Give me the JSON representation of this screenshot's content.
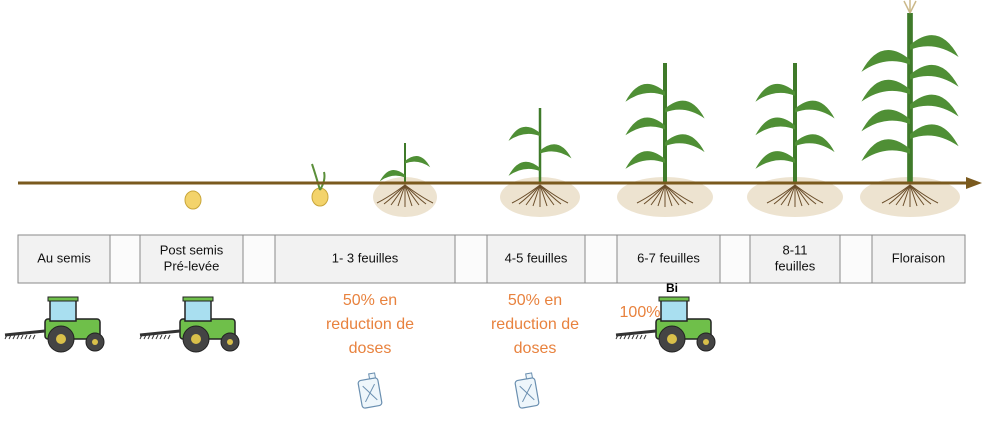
{
  "stages": [
    {
      "lines": [
        "Au semis"
      ]
    },
    {
      "lines": [
        "Post semis",
        "Pré-levée"
      ]
    },
    {
      "lines": [
        "1- 3 feuilles"
      ]
    },
    {
      "lines": [
        "4-5 feuilles"
      ]
    },
    {
      "lines": [
        "6-7 feuilles"
      ]
    },
    {
      "lines": [
        "8-11",
        "feuilles"
      ]
    },
    {
      "lines": [
        "Floraison"
      ]
    }
  ],
  "notes": [
    {
      "lines": [
        "50% en",
        "reduction de",
        "doses"
      ]
    },
    {
      "lines": [
        "50% en",
        "reduction de",
        "doses"
      ]
    },
    {
      "lines": [
        "100%"
      ]
    }
  ],
  "tractor_label": "Bi"
}
